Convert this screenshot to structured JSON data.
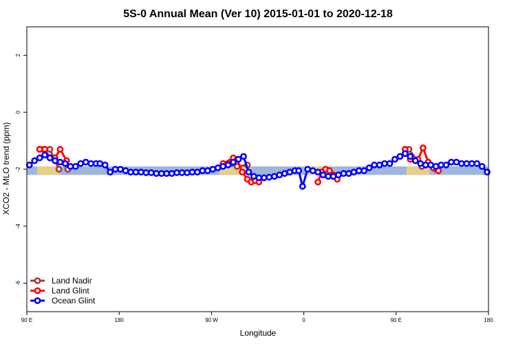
{
  "chart_data": {
    "type": "line",
    "title": "5S-0 Annual Mean (Ver 10)   2015-01-01 to 2020-12-18",
    "xlabel": "Longitude",
    "ylabel": "XCO2 - MLO trend (ppm)",
    "xlim": [
      90,
      450
    ],
    "ylim": [
      -7,
      3
    ],
    "x_ticks": [
      {
        "value": 90,
        "label": "90 E"
      },
      {
        "value": 162,
        "label": "180"
      },
      {
        "value": 234,
        "label": "90 W"
      },
      {
        "value": 306,
        "label": "0"
      },
      {
        "value": 378,
        "label": "90 E"
      },
      {
        "value": 450,
        "label": "180"
      }
    ],
    "y_ticks": [
      {
        "value": 2,
        "label": "2"
      },
      {
        "value": 0,
        "label": "0"
      },
      {
        "value": -2,
        "label": "-2"
      },
      {
        "value": -4,
        "label": "-4"
      },
      {
        "value": -6,
        "label": "-6"
      }
    ],
    "grid": false,
    "legend_position": "bottom-left",
    "band": {
      "y0": -2.2,
      "y1": -1.9,
      "color": "#9fb6db"
    },
    "land_patches": [
      {
        "x0": 98,
        "x1": 116,
        "color": "#f2d47a"
      },
      {
        "x0": 240,
        "x1": 264,
        "color": "#f2d47a"
      },
      {
        "x0": 308,
        "x1": 324,
        "color": "#f2d47a"
      },
      {
        "x0": 386,
        "x1": 404,
        "color": "#f2d47a"
      }
    ],
    "series": [
      {
        "name": "Land Nadir",
        "color": "#a33a3a",
        "x": [
          100,
          103,
          108,
          115,
          122,
          250,
          254,
          262,
          385,
          388,
          398,
          409
        ],
        "y": [
          -1.3,
          -1.3,
          -1.3,
          -2.0,
          -2.0,
          -1.8,
          -1.9,
          -1.85,
          -1.3,
          -1.3,
          -1.9,
          -2.0
        ],
        "segments": [
          [
            0,
            1,
            2,
            3
          ],
          [
            5,
            6,
            7
          ],
          [
            9,
            10
          ]
        ]
      },
      {
        "name": "Land Glint",
        "color": "#ff0000",
        "x": [
          100,
          104,
          108,
          112,
          116,
          121,
          243,
          251,
          254,
          258,
          262,
          265,
          268,
          271,
          317,
          320,
          323,
          326,
          329,
          332,
          385,
          389,
          395,
          399,
          403,
          407,
          411
        ],
        "y": [
          -1.3,
          -1.3,
          -1.6,
          -1.6,
          -1.3,
          -1.7,
          -1.8,
          -1.6,
          -1.65,
          -2.1,
          -2.35,
          -2.45,
          -2.4,
          -2.45,
          -2.45,
          -2.1,
          -2.0,
          -2.05,
          -2.2,
          -2.35,
          -1.3,
          -1.65,
          -1.65,
          -1.25,
          -1.75,
          -1.95,
          -2.05
        ],
        "segments": [
          [
            0,
            1,
            2,
            3,
            4,
            5
          ],
          [
            6,
            7,
            8,
            9,
            10,
            11,
            12,
            13
          ],
          [
            14,
            15,
            16,
            17,
            18,
            19
          ],
          [
            20,
            21,
            22,
            23,
            24,
            25,
            26
          ]
        ]
      },
      {
        "name": "Ocean Glint",
        "color": "#0000ff",
        "x": [
          92,
          96,
          100,
          104,
          108,
          112,
          116,
          120,
          124,
          128,
          132,
          136,
          140,
          144,
          147,
          151,
          155,
          159,
          163,
          167,
          171,
          175,
          179,
          183,
          187,
          191,
          195,
          199,
          203,
          207,
          211,
          215,
          219,
          223,
          227,
          231,
          235,
          239,
          243,
          247,
          251,
          255,
          259,
          263,
          267,
          271,
          275,
          279,
          283,
          287,
          291,
          295,
          299,
          302,
          305,
          309,
          313,
          317,
          321,
          325,
          329,
          333,
          337,
          341,
          345,
          349,
          353,
          357,
          361,
          365,
          369,
          373,
          377,
          381,
          385,
          389,
          393,
          397,
          401,
          405,
          409,
          413,
          417,
          421,
          425,
          429,
          433,
          437,
          441,
          445,
          449
        ],
        "y": [
          -1.85,
          -1.7,
          -1.6,
          -1.5,
          -1.6,
          -1.7,
          -1.75,
          -1.8,
          -1.9,
          -1.9,
          -1.8,
          -1.75,
          -1.8,
          -1.8,
          -1.8,
          -1.85,
          -2.1,
          -2.0,
          -2.0,
          -2.05,
          -2.1,
          -2.1,
          -2.1,
          -2.12,
          -2.12,
          -2.15,
          -2.15,
          -2.15,
          -2.15,
          -2.12,
          -2.12,
          -2.12,
          -2.1,
          -2.1,
          -2.05,
          -2.05,
          -2.0,
          -1.95,
          -1.9,
          -1.85,
          -1.75,
          -1.65,
          -1.55,
          -2.1,
          -2.25,
          -2.3,
          -2.3,
          -2.28,
          -2.25,
          -2.2,
          -2.15,
          -2.1,
          -2.05,
          -2.05,
          -2.6,
          -2.0,
          -2.05,
          -2.1,
          -2.2,
          -2.25,
          -2.25,
          -2.2,
          -2.15,
          -2.15,
          -2.1,
          -2.05,
          -2.05,
          -1.95,
          -1.85,
          -1.85,
          -1.8,
          -1.8,
          -1.65,
          -1.55,
          -1.45,
          -1.55,
          -1.7,
          -1.8,
          -1.85,
          -1.85,
          -1.9,
          -1.85,
          -1.85,
          -1.75,
          -1.75,
          -1.8,
          -1.8,
          -1.8,
          -1.8,
          -1.9,
          -2.1
        ],
        "segments": [
          [
            0,
            90
          ]
        ]
      }
    ]
  }
}
